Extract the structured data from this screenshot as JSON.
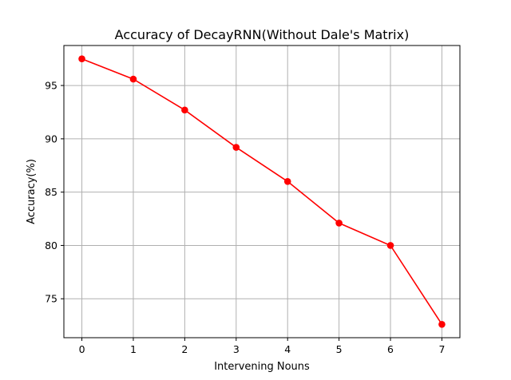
{
  "chart_data": {
    "type": "line",
    "title": "Accuracy of DecayRNN(Without Dale's Matrix)",
    "xlabel": "Intervening Nouns",
    "ylabel": "Accuracy(%)",
    "x": [
      0,
      1,
      2,
      3,
      4,
      5,
      6,
      7
    ],
    "series": [
      {
        "values": [
          97.5,
          95.6,
          92.7,
          89.2,
          86.0,
          82.1,
          80.0,
          72.6
        ]
      }
    ],
    "xticks": [
      0,
      1,
      2,
      3,
      4,
      5,
      6,
      7
    ],
    "yticks": [
      75,
      80,
      85,
      90,
      95
    ],
    "xlim": [
      -0.35,
      7.35
    ],
    "ylim": [
      71.35,
      98.75
    ],
    "grid": true,
    "line_color": "#ff0000",
    "marker": "circle"
  }
}
